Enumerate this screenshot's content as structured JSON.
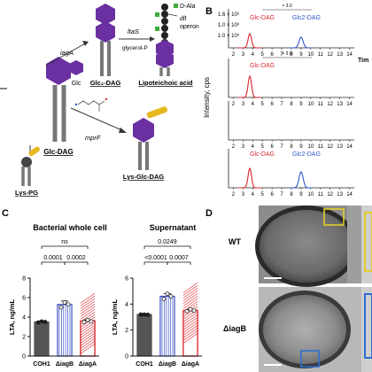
{
  "panels": {
    "A": "",
    "B": "B",
    "C": "C",
    "D": "D"
  },
  "panel_a": {
    "glc_dag": "Glc-DAG",
    "glc2_dag": "Glc₂-DAG",
    "lipoteichoic_acid": "Lipoteichoic acid",
    "lys_glc_dag": "Lys-Glc-DAG",
    "lys_pg": "Lys-PG",
    "glc": "Glc",
    "iagA": "iagA",
    "ltaS": "ltaS",
    "glycerol_p": "glycerol-P",
    "mprF": "mprF",
    "d_ala": "D-Ala",
    "dlt": "dlt",
    "operon": "operon"
  },
  "panel_b": {
    "ylabel": "Intensity, cps",
    "xlabel": "Tim",
    "ytick_top": "1.6 × 10⁶",
    "ytick_mid": "1.0 × 10⁶",
    "ytick_low": "1.0 × 10⁵",
    "zoom_label": "× 3.0",
    "ticks": [
      "2",
      "3",
      "4",
      "5",
      "6",
      "7",
      "8",
      "9",
      "10",
      "11",
      "12",
      "13",
      "14"
    ],
    "glc_dag": "Glc-DAG",
    "glc2_dag": "Glc2-DAG",
    "colors": {
      "glc": "#d8262c",
      "glc2": "#2f55c8"
    }
  },
  "chart_data": [
    {
      "type": "bar",
      "title": "Bacterial whole cell",
      "ylabel": "LTA, ng/mL",
      "ylim": [
        0,
        8
      ],
      "yticks": [
        "0",
        "2",
        "4",
        "6",
        "8"
      ],
      "categories": [
        "COH1",
        "ΔiagB",
        "ΔiagA"
      ],
      "values": [
        3.5,
        5.3,
        3.6
      ],
      "errors": [
        0.1,
        0.35,
        0.12
      ],
      "points": [
        [
          3.45,
          3.55,
          3.5
        ],
        [
          5.0,
          5.5,
          5.3
        ],
        [
          3.5,
          3.7,
          3.55
        ]
      ],
      "stats": [
        {
          "label": "ns",
          "from": 0,
          "to": 2
        },
        {
          "label": "0.0001",
          "from": 0,
          "to": 1
        },
        {
          "label": "0.0002",
          "from": 1,
          "to": 2
        }
      ],
      "colors": [
        "#555555",
        "#3a52c9",
        "#d8262c"
      ]
    },
    {
      "type": "bar",
      "title": "Supernatant",
      "ylabel": "LTA, ng/mL",
      "ylim": [
        0,
        6
      ],
      "yticks": [
        "0",
        "2",
        "4",
        "6"
      ],
      "categories": [
        "COH1",
        "ΔiagB",
        "ΔiagA"
      ],
      "values": [
        3.2,
        4.6,
        3.5
      ],
      "errors": [
        0.03,
        0.2,
        0.1
      ],
      "points": [
        [
          3.2,
          3.2,
          3.18
        ],
        [
          4.4,
          4.8,
          4.6
        ],
        [
          3.45,
          3.6,
          3.5
        ]
      ],
      "stats": [
        {
          "label": "0.0249",
          "from": 0,
          "to": 2
        },
        {
          "label": "<0.0001",
          "from": 0,
          "to": 1
        },
        {
          "label": "0.0007",
          "from": 1,
          "to": 2
        }
      ],
      "colors": [
        "#555555",
        "#3a52c9",
        "#d8262c"
      ]
    }
  ],
  "panel_d": {
    "wt": "WT",
    "iagB": "ΔiagB"
  }
}
